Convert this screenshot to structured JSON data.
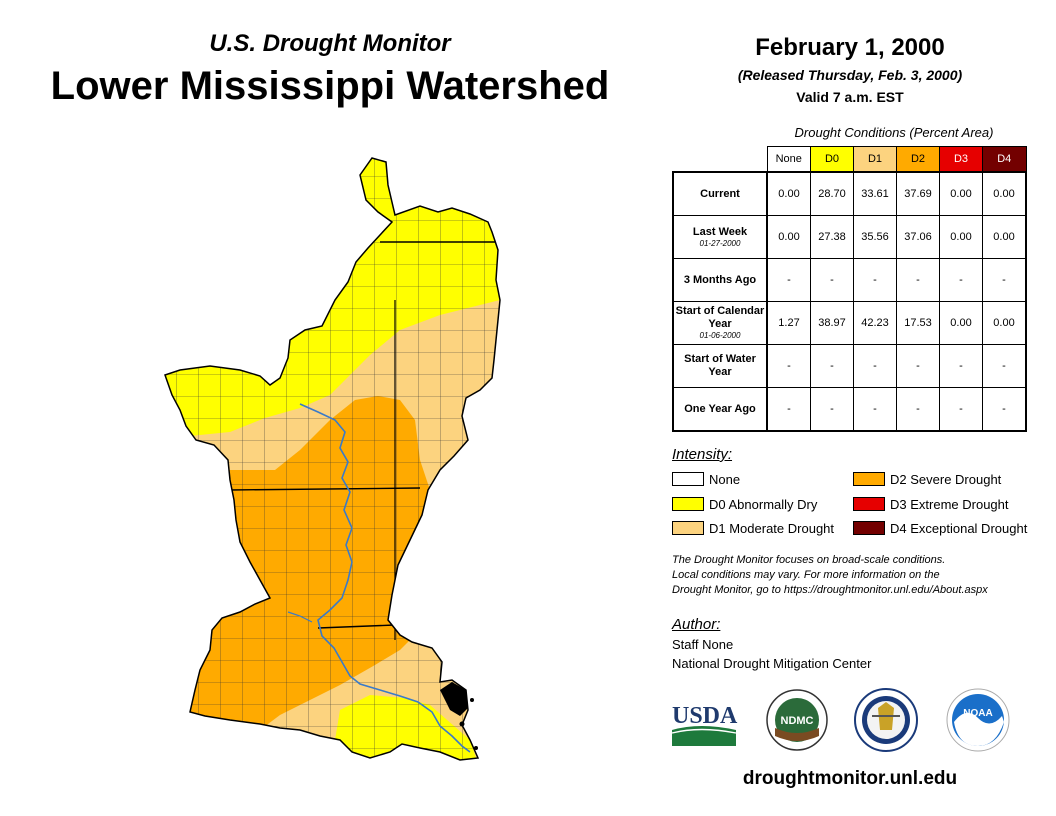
{
  "header": {
    "subtitle": "U.S. Drought Monitor",
    "title": "Lower Mississippi Watershed",
    "date": "February 1, 2000",
    "released": "(Released Thursday, Feb. 3, 2000)",
    "valid": "Valid 7 a.m. EST"
  },
  "table": {
    "caption": "Drought Conditions (Percent Area)",
    "columns": [
      "None",
      "D0",
      "D1",
      "D2",
      "D3",
      "D4"
    ],
    "column_colors": [
      "#ffffff",
      "#ffff00",
      "#fcd37f",
      "#ffaa00",
      "#e60000",
      "#730000"
    ],
    "rows": [
      {
        "label": "Current",
        "sub": "",
        "values": [
          "0.00",
          "28.70",
          "33.61",
          "37.69",
          "0.00",
          "0.00"
        ]
      },
      {
        "label": "Last Week",
        "sub": "01-27-2000",
        "values": [
          "0.00",
          "27.38",
          "35.56",
          "37.06",
          "0.00",
          "0.00"
        ]
      },
      {
        "label": "3 Months Ago",
        "sub": "",
        "values": [
          "-",
          "-",
          "-",
          "-",
          "-",
          "-"
        ]
      },
      {
        "label": "Start of Calendar Year",
        "sub": "01-06-2000",
        "values": [
          "1.27",
          "38.97",
          "42.23",
          "17.53",
          "0.00",
          "0.00"
        ]
      },
      {
        "label": "Start of Water Year",
        "sub": "",
        "values": [
          "-",
          "-",
          "-",
          "-",
          "-",
          "-"
        ]
      },
      {
        "label": "One Year Ago",
        "sub": "",
        "values": [
          "-",
          "-",
          "-",
          "-",
          "-",
          "-"
        ]
      }
    ]
  },
  "legend": {
    "title": "Intensity:",
    "items": [
      {
        "label": "None",
        "color": "#ffffff"
      },
      {
        "label": "D0 Abnormally Dry",
        "color": "#ffff00"
      },
      {
        "label": "D1 Moderate Drought",
        "color": "#fcd37f"
      },
      {
        "label": "D2 Severe Drought",
        "color": "#ffaa00"
      },
      {
        "label": "D3 Extreme Drought",
        "color": "#e60000"
      },
      {
        "label": "D4 Exceptional Drought",
        "color": "#730000"
      }
    ]
  },
  "note": {
    "line1": "The Drought Monitor focuses on broad-scale conditions.",
    "line2": "Local conditions may vary. For more information on the",
    "line3": "Drought Monitor, go to https://droughtmonitor.unl.edu/About.aspx"
  },
  "author": {
    "label": "Author:",
    "name": "Staff None",
    "org": "National Drought Mitigation Center"
  },
  "logos": {
    "usda": "USDA",
    "ndmc": "NDMC",
    "noaa": "NOAA"
  },
  "url": "droughtmonitor.unl.edu",
  "map_colors": {
    "d0": "#ffff00",
    "d1": "#fcd37f",
    "d2": "#ffaa00",
    "river": "#3a7ac8"
  }
}
